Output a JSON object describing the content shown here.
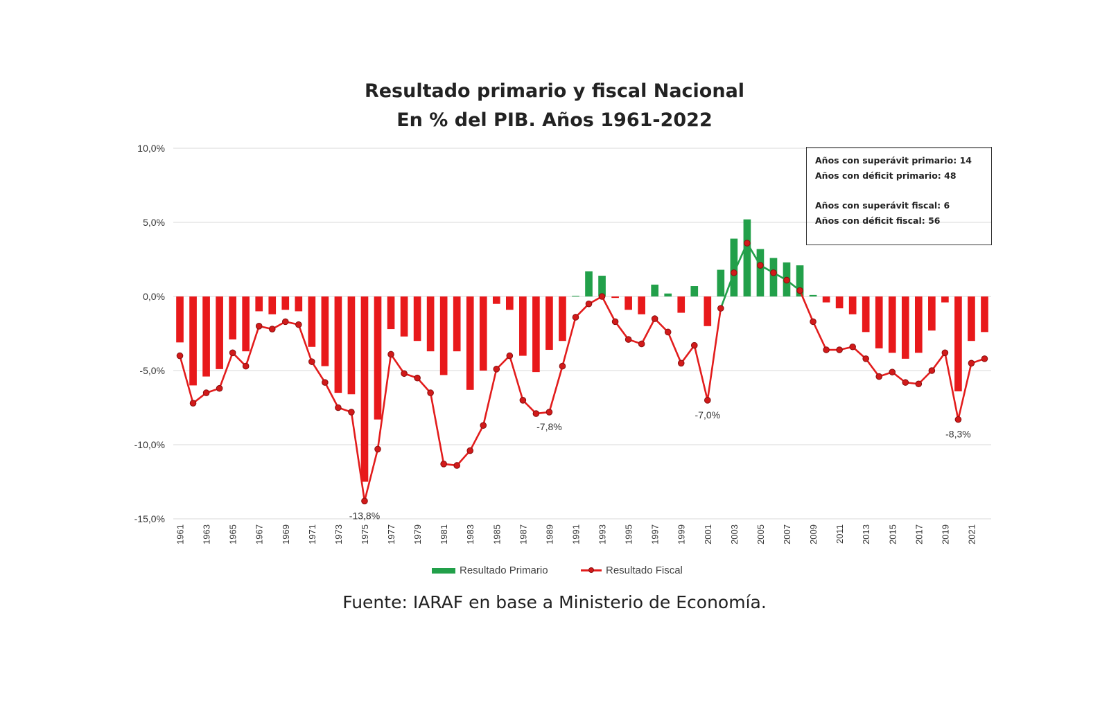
{
  "colors": {
    "deficit_bar": "#e8191b",
    "surplus_bar": "#22a04a",
    "fiscal_line": "#e21c1c",
    "fiscal_marker": "#d11a1a",
    "grid": "#e6e6e6"
  },
  "chart_data": {
    "type": "bar",
    "title": "Resultado primario y fiscal Nacional",
    "subtitle": "En  % del PIB. Años 1961-2022",
    "xlabel": "",
    "ylabel": "",
    "ylim": [
      -15,
      10
    ],
    "y_ticks": [
      10,
      5,
      0,
      -5,
      -10,
      -15
    ],
    "y_tick_labels": [
      "10,0%",
      "5,0%",
      "0,0%",
      "-5,0%",
      "-10,0%",
      "-15,0%"
    ],
    "categories": [
      1961,
      1962,
      1963,
      1964,
      1965,
      1966,
      1967,
      1968,
      1969,
      1970,
      1971,
      1972,
      1973,
      1974,
      1975,
      1976,
      1977,
      1978,
      1979,
      1980,
      1981,
      1982,
      1983,
      1984,
      1985,
      1986,
      1987,
      1988,
      1989,
      1990,
      1991,
      1992,
      1993,
      1994,
      1995,
      1996,
      1997,
      1998,
      1999,
      2000,
      2001,
      2002,
      2003,
      2004,
      2005,
      2006,
      2007,
      2008,
      2009,
      2010,
      2011,
      2012,
      2013,
      2014,
      2015,
      2016,
      2017,
      2018,
      2019,
      2020,
      2021,
      2022
    ],
    "x_tick_labels": [
      "1961",
      "1963",
      "1965",
      "1967",
      "1969",
      "1971",
      "1973",
      "1975",
      "1977",
      "1979",
      "1981",
      "1983",
      "1985",
      "1987",
      "1989",
      "1991",
      "1993",
      "1995",
      "1997",
      "1999",
      "2001",
      "2003",
      "2005",
      "2007",
      "2009",
      "2011",
      "2013",
      "2015",
      "2017",
      "2019",
      "2021"
    ],
    "series": [
      {
        "name": "Resultado Primario",
        "type": "bar",
        "values": [
          -3.1,
          -6.0,
          -5.4,
          -4.9,
          -2.9,
          -3.7,
          -1.0,
          -1.2,
          -0.9,
          -1.0,
          -3.4,
          -4.7,
          -6.5,
          -6.6,
          -12.5,
          -8.3,
          -2.2,
          -2.7,
          -3.0,
          -3.7,
          -5.3,
          -3.7,
          -6.3,
          -5.0,
          -0.5,
          -0.9,
          -4.0,
          -5.1,
          -3.6,
          -3.0,
          0.05,
          1.7,
          1.4,
          -0.1,
          -0.9,
          -1.2,
          0.8,
          0.2,
          -1.1,
          0.7,
          -2.0,
          1.8,
          3.9,
          5.2,
          3.2,
          2.6,
          2.3,
          2.1,
          0.1,
          -0.4,
          -0.8,
          -1.2,
          -2.4,
          -3.5,
          -3.8,
          -4.2,
          -3.8,
          -2.3,
          -0.4,
          -6.4,
          -3.0,
          -2.4
        ]
      },
      {
        "name": "Resultado Fiscal",
        "type": "line",
        "values": [
          -4.0,
          -7.2,
          -6.5,
          -6.2,
          -3.8,
          -4.7,
          -2.0,
          -2.2,
          -1.7,
          -1.9,
          -4.4,
          -5.8,
          -7.5,
          -7.8,
          -13.8,
          -10.3,
          -3.9,
          -5.2,
          -5.5,
          -6.5,
          -11.3,
          -11.4,
          -10.4,
          -8.7,
          -4.9,
          -4.0,
          -7.0,
          -7.9,
          -7.8,
          -4.7,
          -1.4,
          -0.5,
          0.0,
          -1.7,
          -2.9,
          -3.2,
          -1.5,
          -2.4,
          -4.5,
          -3.3,
          -7.0,
          -0.8,
          1.6,
          3.6,
          2.1,
          1.6,
          1.1,
          0.4,
          -1.7,
          -3.6,
          -3.6,
          -3.4,
          -4.2,
          -5.4,
          -5.1,
          -5.8,
          -5.9,
          -5.0,
          -3.8,
          -8.3,
          -4.5,
          -4.2
        ]
      }
    ],
    "annotations": [
      {
        "year": 1975,
        "label": "-13,8%"
      },
      {
        "year": 1989,
        "label": "-7,8%"
      },
      {
        "year": 2001,
        "label": "-7,0%"
      },
      {
        "year": 2020,
        "label": "-8,3%"
      }
    ],
    "legend": {
      "position": "bottom-center",
      "items": [
        "Resultado Primario",
        "Resultado Fiscal"
      ]
    }
  },
  "infobox": {
    "primary_surplus": "Años con superávit primario: 14",
    "primary_deficit": "Años con déficit primario: 48",
    "fiscal_surplus": "Años con superávit fiscal: 6",
    "fiscal_deficit": "Años con déficit fiscal: 56"
  },
  "source": "Fuente: IARAF en base a Ministerio de Economía."
}
